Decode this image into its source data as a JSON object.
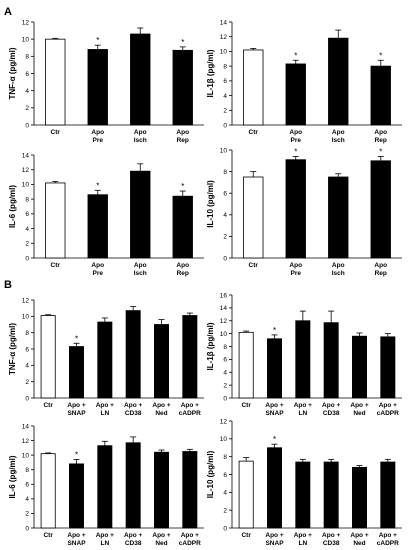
{
  "figure": {
    "section_labels": [
      "A",
      "B"
    ]
  },
  "chart_data": [
    {
      "type": "bar",
      "panel": "A",
      "ylabel": "TNF-α (pg/ml)",
      "ylim": [
        0,
        12
      ],
      "yticks": [
        0,
        2,
        4,
        6,
        8,
        10,
        12
      ],
      "categories": [
        [
          "Ctr"
        ],
        [
          "Apo",
          "Pre"
        ],
        [
          "Apo",
          "Isch"
        ],
        [
          "Apo",
          "Rep"
        ]
      ],
      "values": [
        10.0,
        8.8,
        10.6,
        8.7
      ],
      "errors": [
        0.1,
        0.5,
        0.7,
        0.4
      ],
      "significant": [
        false,
        true,
        false,
        true
      ],
      "bar_fill": [
        "#ffffff",
        "#000000",
        "#000000",
        "#000000"
      ]
    },
    {
      "type": "bar",
      "panel": "A",
      "ylabel": "IL-1β (pg/ml)",
      "ylim": [
        0,
        14
      ],
      "yticks": [
        0,
        2,
        4,
        6,
        8,
        10,
        12,
        14
      ],
      "categories": [
        [
          "Ctr"
        ],
        [
          "Apo",
          "Pre"
        ],
        [
          "Apo",
          "Isch"
        ],
        [
          "Apo",
          "Rep"
        ]
      ],
      "values": [
        10.2,
        8.3,
        11.8,
        8.0
      ],
      "errors": [
        0.2,
        0.5,
        1.1,
        0.8
      ],
      "significant": [
        false,
        true,
        false,
        true
      ],
      "bar_fill": [
        "#ffffff",
        "#000000",
        "#000000",
        "#000000"
      ]
    },
    {
      "type": "bar",
      "panel": "A",
      "ylabel": "IL-6 (pg/ml)",
      "ylim": [
        0,
        14
      ],
      "yticks": [
        0,
        2,
        4,
        6,
        8,
        10,
        12,
        14
      ],
      "categories": [
        [
          "Ctr"
        ],
        [
          "Apo",
          "Pre"
        ],
        [
          "Apo",
          "Isch"
        ],
        [
          "Apo",
          "Rep"
        ]
      ],
      "values": [
        10.2,
        8.6,
        11.8,
        8.4
      ],
      "errors": [
        0.2,
        0.6,
        1.0,
        0.7
      ],
      "significant": [
        false,
        true,
        false,
        true
      ],
      "bar_fill": [
        "#ffffff",
        "#000000",
        "#000000",
        "#000000"
      ]
    },
    {
      "type": "bar",
      "panel": "A",
      "ylabel": "IL-10 (pg/ml)",
      "ylim": [
        0,
        10
      ],
      "yticks": [
        0,
        2,
        4,
        6,
        8,
        10
      ],
      "categories": [
        [
          "Ctr"
        ],
        [
          "Apo",
          "Pre"
        ],
        [
          "Apo",
          "Isch"
        ],
        [
          "Apo",
          "Rep"
        ]
      ],
      "values": [
        7.5,
        9.1,
        7.5,
        9.0
      ],
      "errors": [
        0.5,
        0.3,
        0.3,
        0.4
      ],
      "significant": [
        false,
        true,
        false,
        true
      ],
      "bar_fill": [
        "#ffffff",
        "#000000",
        "#000000",
        "#000000"
      ]
    },
    {
      "type": "bar",
      "panel": "B",
      "ylabel": "TNF-α (pg/ml)",
      "ylim": [
        0,
        12
      ],
      "yticks": [
        0,
        2,
        4,
        6,
        8,
        10,
        12
      ],
      "categories": [
        [
          "Ctr"
        ],
        [
          "Apo +",
          "SNAP"
        ],
        [
          "Apo +",
          "LN"
        ],
        [
          "Apo +",
          "CD38"
        ],
        [
          "Apo +",
          "Ned"
        ],
        [
          "Apo +",
          "cADPR"
        ]
      ],
      "values": [
        10.1,
        6.3,
        9.3,
        10.7,
        9.0,
        10.1
      ],
      "errors": [
        0.1,
        0.4,
        0.5,
        0.5,
        0.6,
        0.3
      ],
      "significant": [
        false,
        true,
        false,
        false,
        false,
        false
      ],
      "bar_fill": [
        "#ffffff",
        "#000000",
        "#000000",
        "#000000",
        "#000000",
        "#000000"
      ]
    },
    {
      "type": "bar",
      "panel": "B",
      "ylabel": "IL-1β (pg/ml)",
      "ylim": [
        0,
        16
      ],
      "yticks": [
        0,
        2,
        4,
        6,
        8,
        10,
        12,
        14,
        16
      ],
      "categories": [
        [
          "Ctr"
        ],
        [
          "Apo +",
          "SNAP"
        ],
        [
          "Apo +",
          "LN"
        ],
        [
          "Apo +",
          "CD38"
        ],
        [
          "Apo +",
          "Ned"
        ],
        [
          "Apo +",
          "cADPR"
        ]
      ],
      "values": [
        10.2,
        9.2,
        12.0,
        11.7,
        9.6,
        9.5
      ],
      "errors": [
        0.2,
        0.6,
        1.5,
        1.8,
        0.5,
        0.5
      ],
      "significant": [
        false,
        true,
        false,
        false,
        false,
        false
      ],
      "bar_fill": [
        "#ffffff",
        "#000000",
        "#000000",
        "#000000",
        "#000000",
        "#000000"
      ]
    },
    {
      "type": "bar",
      "panel": "B",
      "ylabel": "IL-6 (pg/ml)",
      "ylim": [
        0,
        14
      ],
      "yticks": [
        0,
        2,
        4,
        6,
        8,
        10,
        12,
        14
      ],
      "categories": [
        [
          "Ctr"
        ],
        [
          "Apo +",
          "SNAP"
        ],
        [
          "Apo +",
          "LN"
        ],
        [
          "Apo +",
          "CD38"
        ],
        [
          "Apo +",
          "Ned"
        ],
        [
          "Apo +",
          "cADPR"
        ]
      ],
      "values": [
        10.2,
        8.8,
        11.3,
        11.7,
        10.4,
        10.5
      ],
      "errors": [
        0.1,
        0.6,
        0.6,
        0.8,
        0.3,
        0.3
      ],
      "significant": [
        false,
        true,
        false,
        false,
        false,
        false
      ],
      "bar_fill": [
        "#ffffff",
        "#000000",
        "#000000",
        "#000000",
        "#000000",
        "#000000"
      ]
    },
    {
      "type": "bar",
      "panel": "B",
      "ylabel": "IL-10 (pg/ml)",
      "ylim": [
        0,
        12
      ],
      "yticks": [
        0,
        2,
        4,
        6,
        8,
        10,
        12
      ],
      "categories": [
        [
          "Ctr"
        ],
        [
          "Apo +",
          "SNAP"
        ],
        [
          "Apo +",
          "LN"
        ],
        [
          "Apo +",
          "CD38"
        ],
        [
          "Apo +",
          "Ned"
        ],
        [
          "Apo +",
          "cADPR"
        ]
      ],
      "values": [
        7.5,
        9.0,
        7.4,
        7.4,
        6.8,
        7.4
      ],
      "errors": [
        0.4,
        0.4,
        0.3,
        0.3,
        0.2,
        0.3
      ],
      "significant": [
        false,
        true,
        false,
        false,
        false,
        false
      ],
      "bar_fill": [
        "#ffffff",
        "#000000",
        "#000000",
        "#000000",
        "#000000",
        "#000000"
      ]
    }
  ]
}
